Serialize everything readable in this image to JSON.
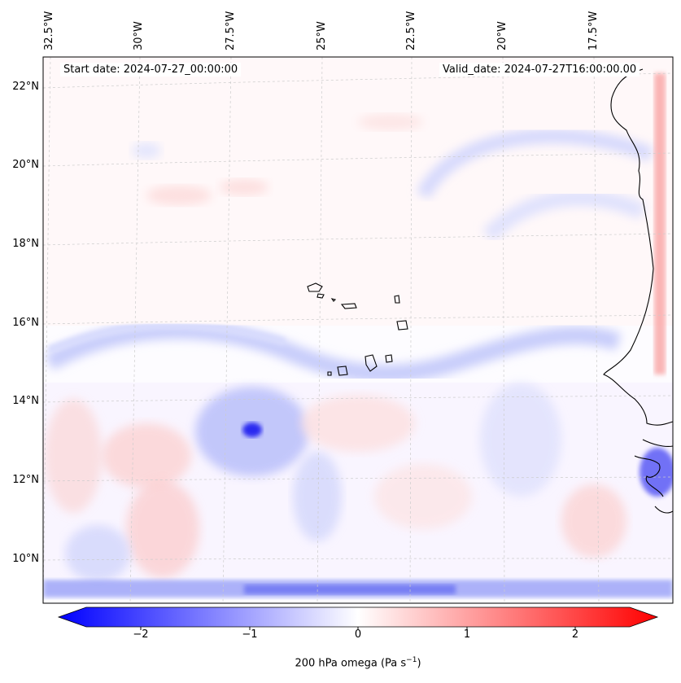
{
  "map": {
    "start_date_text": "Start date: 2024-07-27_00:00:00",
    "valid_date_text": "Valid_date: 2024-07-27T16:00:00.00",
    "longitude_labels": [
      "32.5°W",
      "30°W",
      "27.5°W",
      "25°W",
      "22.5°W",
      "20°W",
      "17.5°W"
    ],
    "latitude_labels": [
      "22°N",
      "20°N",
      "18°N",
      "16°N",
      "14°N",
      "12°N",
      "10°N"
    ],
    "colorbar": {
      "ticks": [
        "−2",
        "−1",
        "0",
        "1",
        "2"
      ],
      "label": "200 hPa omega (Pa s",
      "label_exponent": "−1",
      "label_close": ")",
      "min_color": "#0000ff",
      "mid_color": "#ffffff",
      "max_color": "#ff0000"
    },
    "field_name": "200 hPa omega",
    "coastline_color": "#000000",
    "grid_color": "#cccccc"
  }
}
